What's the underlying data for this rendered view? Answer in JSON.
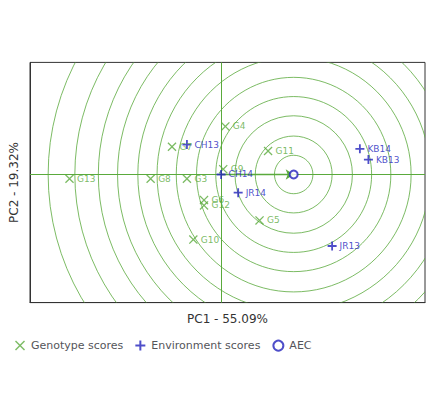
{
  "chart_data": {
    "type": "scatter",
    "xlabel": "PC1 - 55.09%",
    "ylabel": "PC2 - 19.32%",
    "xlim": [
      -1.95,
      1.75
    ],
    "ylim": [
      -1.15,
      1.1
    ],
    "tick_labels": false,
    "grid": false,
    "legend": "lower left",
    "series": [
      {
        "name": "Genotype scores",
        "color": "#5aaa3c",
        "marker": "x",
        "labels": [
          "G3",
          "G4",
          "G5",
          "G6",
          "G7",
          "G8",
          "G9",
          "G10",
          "G11",
          "G12",
          "G13"
        ],
        "x": [
          -0.48,
          -0.12,
          0.2,
          -0.32,
          -0.62,
          -0.82,
          -0.14,
          -0.42,
          0.28,
          -0.32,
          -1.58
        ],
        "y": [
          0.01,
          0.5,
          -0.38,
          -0.19,
          0.31,
          0.01,
          0.1,
          -0.56,
          0.27,
          -0.24,
          0.01
        ]
      },
      {
        "name": "Environment scores",
        "color": "#2222bb",
        "marker": "plus",
        "labels": [
          "CH13",
          "CH14",
          "JR13",
          "JR14",
          "KB13",
          "KB14"
        ],
        "x": [
          -0.48,
          -0.16,
          0.88,
          0.0,
          1.22,
          1.14
        ],
        "y": [
          0.33,
          0.05,
          -0.62,
          -0.12,
          0.19,
          0.29
        ]
      },
      {
        "name": "AEC",
        "color": "#2222bb",
        "marker": "circle",
        "x": [
          0.52
        ],
        "y": [
          0.05
        ]
      }
    ],
    "circles": {
      "center": [
        0.52,
        0.05
      ],
      "radii": [
        0.18,
        0.36,
        0.55,
        0.73,
        0.91,
        1.1,
        1.28,
        1.46,
        1.65,
        1.83,
        2.05,
        2.3
      ],
      "color": "#5aaa3c"
    },
    "crosshair": {
      "x": -0.16,
      "y": 0.05,
      "color": "#5aaa3c"
    },
    "arrow": {
      "from": [
        -0.16,
        0.05
      ],
      "to": [
        0.52,
        0.05
      ],
      "color": "#5aaa3c"
    }
  }
}
